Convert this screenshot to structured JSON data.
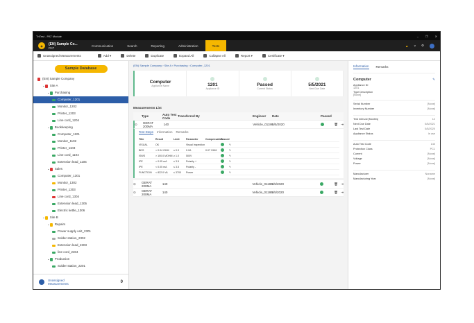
{
  "window": {
    "title": "TnTest - PAT Module"
  },
  "header": {
    "company": "(EN) Sample Co...",
    "sub": "PAT",
    "nav": [
      "Communication",
      "Search",
      "Reporting",
      "Administration",
      "Tests"
    ],
    "active": 4
  },
  "toolbar": [
    "Unassigned Measurements",
    "Add ▾",
    "Delete",
    "Duplicate",
    "Expand All",
    "Collapse All",
    "Report ▾",
    "Certificate ▾"
  ],
  "sidebar": {
    "db_button": "Sample Database",
    "tree": [
      {
        "label": "(EN) Sample Company",
        "level": 0,
        "color": "#d33"
      },
      {
        "label": "Site A",
        "level": 1,
        "color": "#d33"
      },
      {
        "label": "Purchasing",
        "level": 2,
        "color": "#3aa864"
      },
      {
        "label": "Computer_1201",
        "level": 3,
        "color": "#3aa864",
        "selected": true
      },
      {
        "label": "Monitor_1202",
        "level": 3,
        "color": "#3aa864"
      },
      {
        "label": "Printer_1203",
        "level": 3,
        "color": "#3aa864"
      },
      {
        "label": "Line cord_1204",
        "level": 3,
        "color": "#3aa864"
      },
      {
        "label": "Bookkeeping",
        "level": 2,
        "color": "#3aa864"
      },
      {
        "label": "Computer_1101",
        "level": 3,
        "color": "#3aa864"
      },
      {
        "label": "Monitor_1102",
        "level": 3,
        "color": "#3aa864"
      },
      {
        "label": "Printer_1103",
        "level": 3,
        "color": "#3aa864"
      },
      {
        "label": "Line cord_1104",
        "level": 3,
        "color": "#3aa864"
      },
      {
        "label": "Extension lead_1105",
        "level": 3,
        "color": "#3aa864"
      },
      {
        "label": "Sales",
        "level": 2,
        "color": "#d33"
      },
      {
        "label": "Computer_1301",
        "level": 3,
        "color": "#3aa864"
      },
      {
        "label": "Monitor_1302",
        "level": 3,
        "color": "#f5b700"
      },
      {
        "label": "Printer_1303",
        "level": 3,
        "color": "#3aa864"
      },
      {
        "label": "Line cord_1304",
        "level": 3,
        "color": "#d33"
      },
      {
        "label": "Extension lead_1305",
        "level": 3,
        "color": "#3aa864"
      },
      {
        "label": "Electric kettle_1306",
        "level": 3,
        "color": "#3aa864"
      },
      {
        "label": "Site B",
        "level": 1,
        "color": "#f5b700"
      },
      {
        "label": "Repairs",
        "level": 2,
        "color": "#f5b700"
      },
      {
        "label": "Power supply unit_2301",
        "level": 3,
        "color": "#3aa864"
      },
      {
        "label": "Solder station_2302",
        "level": 3,
        "color": "#aaa"
      },
      {
        "label": "Extension lead_2303",
        "level": 3,
        "color": "#f5b700"
      },
      {
        "label": "line cord_2304",
        "level": 3,
        "color": "#3aa864"
      },
      {
        "label": "Production",
        "level": 2,
        "color": "#3aa864"
      },
      {
        "label": "Solder station_2201",
        "level": 3,
        "color": "#3aa864"
      }
    ],
    "unassigned_label": "Unassigned Measurements",
    "unassigned_count": "0"
  },
  "breadcrumb": "(EN) Sample Company  ›  Site A  ›  Purchasing  ›  Computer_1201",
  "summary": [
    {
      "value": "Computer",
      "label": "Appliance Name"
    },
    {
      "value": "1201",
      "label": "Appliance ID"
    },
    {
      "value": "Passed",
      "label": "Current Status"
    },
    {
      "value": "5/5/2021",
      "label": "Next Due Date"
    }
  ],
  "measurements": {
    "title": "Measurements List",
    "columns": [
      "",
      "Type",
      "Auto Test Code",
      "Transferred By",
      "Engineer",
      "Date",
      "Passed"
    ],
    "rows": [
      {
        "type": "GERAT 200MA",
        "code": "140",
        "engineer": "Vehicle_01186",
        "date": "5/5/2020"
      },
      {
        "type": "GERAT 200MA",
        "code": "140",
        "engineer": "Vehicle_01186",
        "date": "5/5/2020"
      },
      {
        "type": "GERAT 200MA",
        "code": "140",
        "engineer": "Vehicle_01186",
        "date": "5/5/2020"
      }
    ],
    "detail_tabs": [
      "Test Steps",
      "Information",
      "Remarks"
    ],
    "step_columns": [
      "Title",
      "Result",
      "Limit",
      "Parameter",
      "Compensation",
      "Passed"
    ],
    "steps": [
      [
        "VISUAL",
        "OK",
        "",
        "Visual Inspection",
        ""
      ],
      [
        "BDS",
        "< 0.04 OHM",
        "≤ 0.3",
        "0.2A",
        "0.07 OHM"
      ],
      [
        "ISWS",
        "> 100.0 MOHM",
        "≥ 1.0",
        "500V",
        ""
      ],
      [
        "IPE",
        "< 0.05 mA",
        "≤ 3.5",
        "Polarity +",
        ""
      ],
      [
        "IPE",
        "< 0.05 mA",
        "≤ 3.5",
        "Polarity -",
        ""
      ],
      [
        "FUNCTION",
        "< 822.0 VA",
        "≤ 3700",
        "Power",
        ""
      ]
    ]
  },
  "right": {
    "tabs": [
      "Information",
      "Remarks"
    ],
    "name": "Computer",
    "top": [
      [
        "Appliance ID",
        "1201"
      ],
      [
        "Type Description",
        "[None]"
      ]
    ],
    "groups": [
      [
        [
          "Serial Number",
          "[None]"
        ],
        [
          "Inventory Number",
          "[None]"
        ]
      ],
      [
        [
          "Test Interval [Months]",
          "12"
        ],
        [
          "Next Due Date",
          "5/5/2021"
        ],
        [
          "Last Test Date",
          "5/5/2020"
        ],
        [
          "Appliance Status",
          "In use"
        ]
      ],
      [
        [
          "Auto Test Code",
          "140"
        ],
        [
          "Protection Class",
          "PC1"
        ],
        [
          "Current",
          "[None]"
        ],
        [
          "Voltage",
          "[None]"
        ],
        [
          "Power",
          "[None]"
        ]
      ],
      [
        [
          "Manufacturer",
          "Noname"
        ],
        [
          "Manufacturing Year",
          "[None]"
        ]
      ]
    ]
  },
  "colors": {
    "accent": "#f5b700",
    "selected": "#2d5ea8",
    "pass": "#3aa864"
  }
}
